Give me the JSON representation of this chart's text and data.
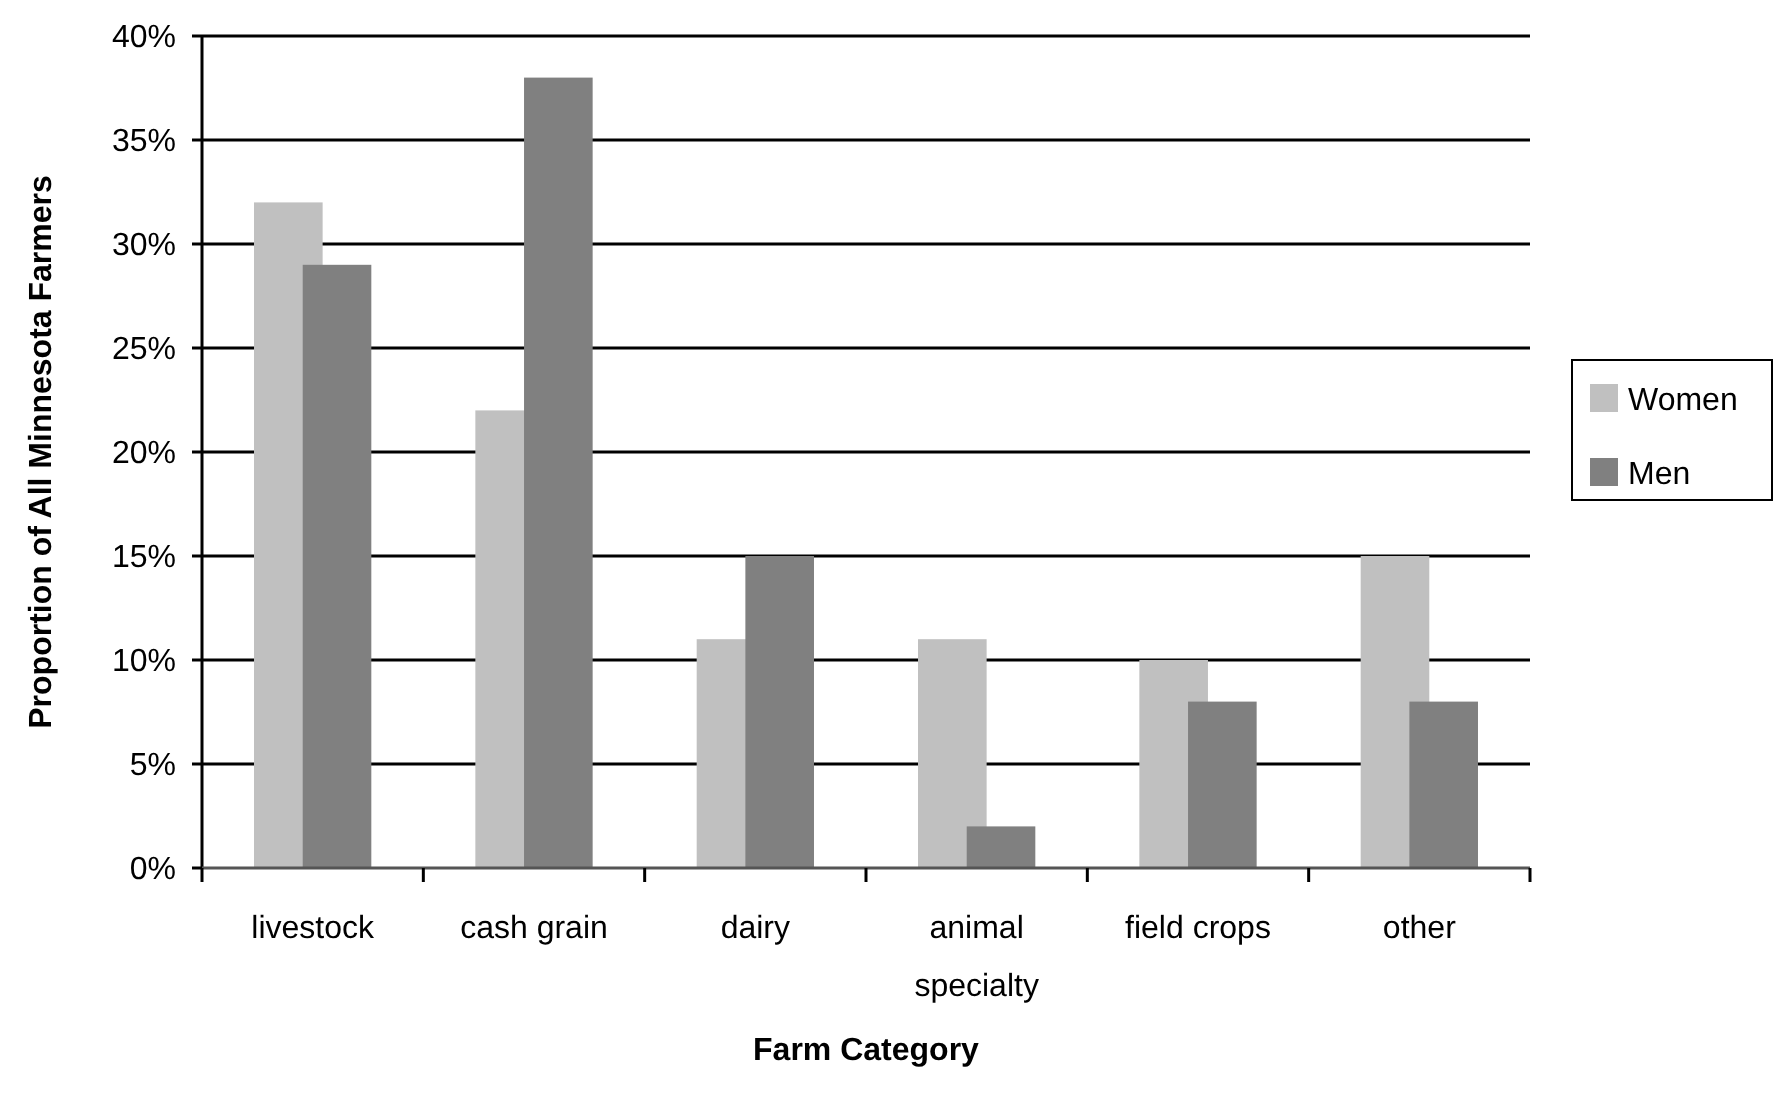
{
  "chart_data": {
    "type": "bar",
    "xlabel": "Farm Category",
    "ylabel": "Proportion of All Minnesota Farmers",
    "categories": [
      "livestock",
      "cash grain",
      "dairy",
      "animal specialty",
      "field crops",
      "other"
    ],
    "series": [
      {
        "name": "Women",
        "color": "#c0c0c0",
        "values": [
          32,
          22,
          11,
          11,
          10,
          15
        ]
      },
      {
        "name": "Men",
        "color": "#808080",
        "values": [
          29,
          38,
          15,
          2,
          8,
          8
        ]
      }
    ],
    "ylim": [
      0,
      40
    ],
    "yticks": [
      {
        "value": 0,
        "label": "0%"
      },
      {
        "value": 5,
        "label": "5%"
      },
      {
        "value": 10,
        "label": "10%"
      },
      {
        "value": 15,
        "label": "15%"
      },
      {
        "value": 20,
        "label": "20%"
      },
      {
        "value": 25,
        "label": "25%"
      },
      {
        "value": 30,
        "label": "30%"
      },
      {
        "value": 35,
        "label": "35%"
      },
      {
        "value": 40,
        "label": "40%"
      }
    ],
    "grid": "y",
    "legend": "right"
  }
}
